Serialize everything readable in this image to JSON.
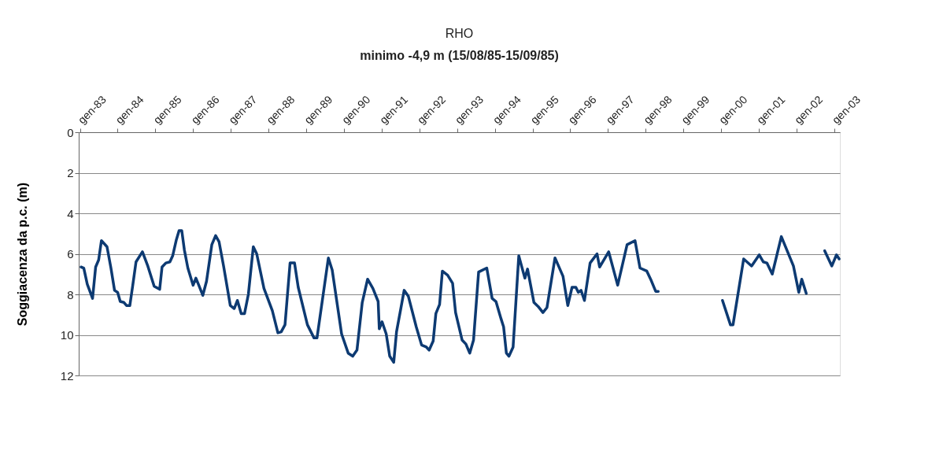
{
  "chart_data": {
    "type": "line",
    "title": "RHO",
    "subtitle": "minimo -4,9 m (15/08/85-15/09/85)",
    "ylabel": "Soggiacenza da p.c. (m)",
    "xlim": [
      "1982-12-20",
      "2003-02-25"
    ],
    "xticks": [
      {
        "value": "1983-01-01",
        "label": "gen-83"
      },
      {
        "value": "1984-01-01",
        "label": "gen-84"
      },
      {
        "value": "1985-01-01",
        "label": "gen-85"
      },
      {
        "value": "1986-01-01",
        "label": "gen-86"
      },
      {
        "value": "1987-01-01",
        "label": "gen-87"
      },
      {
        "value": "1988-01-01",
        "label": "gen-88"
      },
      {
        "value": "1989-01-01",
        "label": "gen-89"
      },
      {
        "value": "1990-01-01",
        "label": "gen-90"
      },
      {
        "value": "1991-01-01",
        "label": "gen-91"
      },
      {
        "value": "1992-01-01",
        "label": "gen-92"
      },
      {
        "value": "1993-01-01",
        "label": "gen-93"
      },
      {
        "value": "1994-01-01",
        "label": "gen-94"
      },
      {
        "value": "1995-01-01",
        "label": "gen-95"
      },
      {
        "value": "1996-01-01",
        "label": "gen-96"
      },
      {
        "value": "1997-01-01",
        "label": "gen-97"
      },
      {
        "value": "1998-01-01",
        "label": "gen-98"
      },
      {
        "value": "1999-01-01",
        "label": "gen-99"
      },
      {
        "value": "2000-01-01",
        "label": "gen-00"
      },
      {
        "value": "2001-01-01",
        "label": "gen-01"
      },
      {
        "value": "2002-01-01",
        "label": "gen-02"
      },
      {
        "value": "2003-01-01",
        "label": "gen-03"
      }
    ],
    "ylim": [
      12,
      0
    ],
    "yticks": [
      0,
      2,
      4,
      6,
      8,
      10,
      12
    ],
    "grid": "y",
    "legend": false,
    "marker": "none",
    "line_style": "solid",
    "series": [
      {
        "color": "#0d3a72",
        "x": [
          "1983-01-12",
          "1983-02-07",
          "1983-03-13",
          "1983-05-03",
          "1983-06-02",
          "1983-07-01",
          "1983-07-28",
          "1983-09-20",
          "1983-10-28",
          "1983-12-02",
          "1984-01-01",
          "1984-01-26",
          "1984-03-02",
          "1984-03-27",
          "1984-04-28",
          "1984-05-25",
          "1984-06-27",
          "1984-08-28",
          "1984-10-19",
          "1984-12-20",
          "1985-02-11",
          "1985-03-06",
          "1985-04-12",
          "1985-05-21",
          "1985-06-17",
          "1985-07-23",
          "1985-08-18",
          "1985-09-13",
          "1985-10-08",
          "1985-11-11",
          "1986-01-01",
          "1986-01-28",
          "1986-02-25",
          "1986-04-05",
          "1986-05-11",
          "1986-07-01",
          "1986-08-07",
          "1986-09-09",
          "1986-10-23",
          "1986-12-27",
          "1987-02-03",
          "1987-03-06",
          "1987-04-12",
          "1987-05-14",
          "1987-06-20",
          "1987-08-07",
          "1987-09-09",
          "1987-11-18",
          "1988-02-07",
          "1988-04-01",
          "1988-05-03",
          "1988-06-09",
          "1988-07-28",
          "1988-09-09",
          "1988-10-15",
          "1989-01-12",
          "1989-03-17",
          "1989-04-15",
          "1989-08-03",
          "1989-09-09",
          "1989-12-09",
          "1990-02-11",
          "1990-03-27",
          "1990-05-07",
          "1990-06-27",
          "1990-08-18",
          "1990-10-08",
          "1990-11-28",
          "1990-12-09",
          "1991-01-05",
          "1991-02-14",
          "1991-03-20",
          "1991-04-28",
          "1991-05-25",
          "1991-08-07",
          "1991-09-17",
          "1991-12-02",
          "1992-01-23",
          "1992-03-09",
          "1992-04-05",
          "1992-05-14",
          "1992-06-09",
          "1992-07-15",
          "1992-08-11",
          "1992-10-01",
          "1992-11-18",
          "1992-12-17",
          "1993-02-18",
          "1993-03-27",
          "1993-05-03",
          "1993-06-09",
          "1993-07-28",
          "1993-10-15",
          "1993-12-06",
          "1994-01-12",
          "1994-03-02",
          "1994-03-27",
          "1994-04-23",
          "1994-05-18",
          "1994-06-27",
          "1994-08-21",
          "1994-10-19",
          "1994-11-14",
          "1995-01-15",
          "1995-02-25",
          "1995-04-12",
          "1995-05-21",
          "1995-08-07",
          "1995-10-23",
          "1995-12-09",
          "1996-01-19",
          "1996-02-25",
          "1996-03-20",
          "1996-04-15",
          "1996-05-18",
          "1996-07-12",
          "1996-09-17",
          "1996-10-12",
          "1997-01-08",
          "1997-04-05",
          "1997-07-05",
          "1997-09-20",
          "1997-11-07",
          "1998-01-12",
          "1998-02-18",
          "1998-04-08",
          "1998-05-03",
          "1998-09-13",
          "2000-01-15",
          "2000-04-01",
          "2000-04-26",
          "2000-08-07",
          "2000-10-23",
          "2001-01-05",
          "2001-02-14",
          "2001-03-20",
          "2001-05-11",
          "2001-08-07",
          "2001-12-02",
          "2002-01-23",
          "2002-02-21",
          "2002-04-05",
          "2002-07-01",
          "2002-10-01",
          "2002-12-09",
          "2003-01-23",
          "2003-02-18"
        ],
        "values": [
          6.65,
          6.7,
          7.5,
          8.2,
          6.65,
          6.3,
          5.35,
          5.65,
          6.7,
          7.8,
          7.9,
          8.35,
          8.4,
          8.55,
          8.55,
          7.6,
          6.4,
          5.9,
          6.6,
          7.6,
          7.75,
          6.65,
          6.45,
          6.4,
          6.1,
          5.3,
          4.85,
          4.85,
          5.8,
          6.7,
          7.55,
          7.2,
          7.55,
          8.05,
          7.35,
          5.55,
          5.1,
          5.4,
          6.6,
          8.55,
          8.7,
          8.3,
          8.95,
          8.95,
          8.0,
          5.65,
          6.0,
          7.7,
          8.8,
          9.9,
          9.85,
          9.5,
          6.45,
          6.45,
          7.65,
          9.5,
          10.15,
          10.15,
          6.2,
          6.8,
          9.95,
          10.9,
          11.05,
          10.75,
          8.4,
          7.25,
          7.7,
          8.35,
          9.7,
          9.35,
          9.95,
          11.05,
          11.35,
          9.85,
          7.8,
          8.1,
          9.6,
          10.5,
          10.6,
          10.75,
          10.3,
          8.95,
          8.5,
          6.85,
          7.05,
          7.45,
          8.9,
          10.25,
          10.45,
          10.9,
          10.25,
          6.9,
          6.7,
          8.2,
          8.35,
          9.2,
          9.6,
          10.9,
          11.05,
          10.6,
          6.1,
          7.2,
          6.75,
          8.4,
          8.6,
          8.9,
          8.65,
          6.2,
          7.1,
          8.55,
          7.65,
          7.65,
          7.9,
          7.8,
          8.3,
          6.45,
          6.0,
          6.65,
          5.9,
          7.55,
          5.55,
          5.35,
          6.7,
          6.85,
          7.25,
          7.85,
          7.85,
          null,
          8.3,
          9.5,
          9.5,
          6.25,
          6.6,
          6.05,
          6.4,
          6.45,
          7.0,
          5.15,
          6.6,
          7.9,
          7.25,
          7.95,
          null,
          5.85,
          6.6,
          6.05,
          6.25
        ]
      }
    ]
  }
}
